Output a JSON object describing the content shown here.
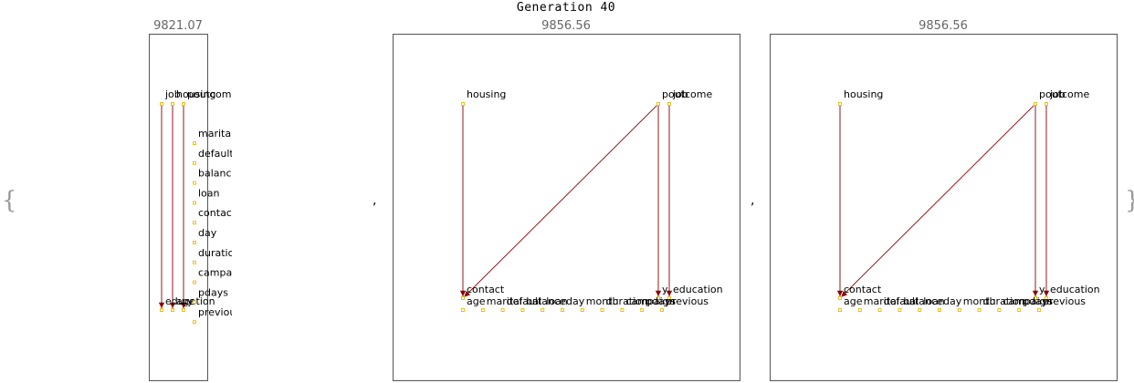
{
  "title": "Generation 40",
  "open_brace": "{",
  "close_brace": "}",
  "separator": ",",
  "colors": {
    "node": "#e8c21a",
    "edge": "#8b0000",
    "frame": "#555555"
  },
  "panels": [
    {
      "score": "9821.07",
      "top_labels": [
        "job",
        "housing",
        "poutcome"
      ],
      "side_labels": [
        "marital",
        "default",
        "balance",
        "loan",
        "contact",
        "day",
        "duration",
        "campaign",
        "pdays",
        "previous"
      ],
      "bottom_labels": [
        "education",
        "age",
        "y"
      ],
      "edges": [
        [
          "job",
          "education"
        ],
        [
          "housing",
          "age"
        ],
        [
          "poutcome",
          "y"
        ]
      ]
    },
    {
      "score": "9856.56",
      "top_labels": [
        "housing",
        "poutcome",
        "job"
      ],
      "mid_labels": [
        "contact",
        "y",
        "education"
      ],
      "bottom_labels": [
        "age",
        "marital",
        "default",
        "balance",
        "loan",
        "day",
        "month",
        "duration",
        "campaign",
        "pdays",
        "previous"
      ],
      "edges": [
        [
          "housing",
          "contact"
        ],
        [
          "poutcome",
          "contact"
        ],
        [
          "poutcome",
          "y"
        ],
        [
          "job",
          "education"
        ]
      ]
    },
    {
      "score": "9856.56",
      "top_labels": [
        "housing",
        "poutcome",
        "job"
      ],
      "mid_labels": [
        "contact",
        "y",
        "education"
      ],
      "bottom_labels": [
        "age",
        "marital",
        "default",
        "balance",
        "loan",
        "day",
        "month",
        "duration",
        "campaign",
        "pdays",
        "previous"
      ],
      "edges": [
        [
          "housing",
          "contact"
        ],
        [
          "poutcome",
          "contact"
        ],
        [
          "poutcome",
          "y"
        ],
        [
          "job",
          "education"
        ]
      ]
    }
  ]
}
